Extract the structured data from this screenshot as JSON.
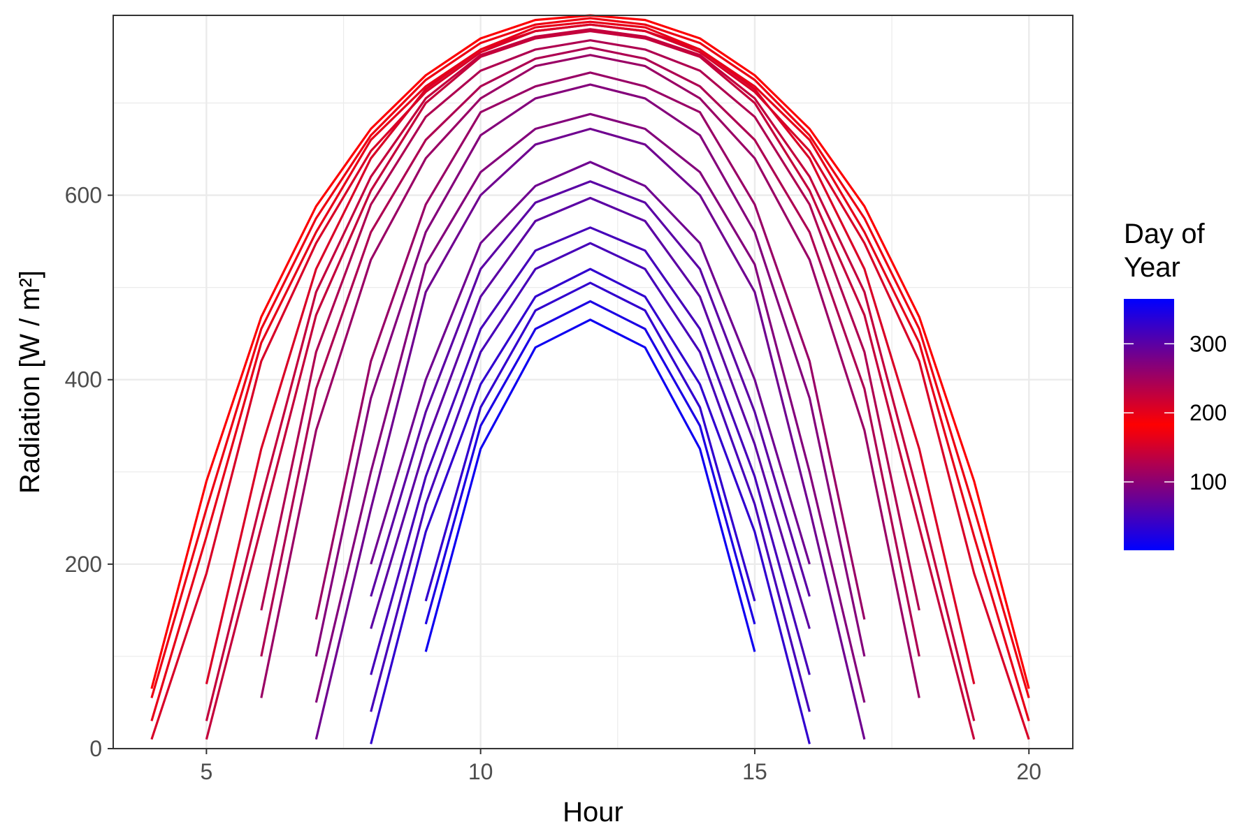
{
  "chart_data": {
    "type": "line",
    "title": "",
    "xlabel": "Hour",
    "ylabel": "Radiation [W / m²]",
    "xlim": [
      3.3,
      20.8
    ],
    "ylim": [
      0,
      795
    ],
    "x_ticks": [
      5,
      10,
      15,
      20
    ],
    "y_ticks": [
      0,
      200,
      400,
      600
    ],
    "x_minor_ticks": [
      7.5,
      12.5,
      17.5
    ],
    "y_minor_ticks": [
      100,
      300,
      500,
      700
    ],
    "grid": true,
    "legend": {
      "title_lines": [
        "Day of",
        "Year"
      ],
      "position": "right",
      "type": "colorbar",
      "range": [
        1,
        365
      ],
      "breaks": [
        100,
        200,
        300
      ],
      "colors": {
        "low": "#0000ff",
        "mid": "#ff0000",
        "high": "#0000ff"
      },
      "midpoint": 182
    },
    "colors": {
      "low": "#0000ff",
      "mid": "#ff0000",
      "high": "#0000ff"
    },
    "series": [
      {
        "day": 355,
        "x": [
          9,
          10,
          11,
          12,
          13,
          14,
          15
        ],
        "y": [
          105,
          325,
          435,
          465,
          435,
          325,
          105
        ]
      },
      {
        "day": 20,
        "x": [
          9,
          10,
          11,
          12,
          13,
          14,
          15
        ],
        "y": [
          135,
          350,
          455,
          485,
          455,
          350,
          135
        ]
      },
      {
        "day": 330,
        "x": [
          9,
          10,
          11,
          12,
          13,
          14,
          15
        ],
        "y": [
          160,
          370,
          475,
          505,
          475,
          370,
          160
        ]
      },
      {
        "day": 35,
        "x": [
          8,
          9,
          10,
          11,
          12,
          13,
          14,
          15,
          16
        ],
        "y": [
          5,
          235,
          395,
          490,
          520,
          490,
          395,
          235,
          5
        ]
      },
      {
        "day": 315,
        "x": [
          8,
          9,
          10,
          11,
          12,
          13,
          14,
          15,
          16
        ],
        "y": [
          40,
          265,
          430,
          520,
          548,
          520,
          430,
          265,
          40
        ]
      },
      {
        "day": 50,
        "x": [
          8,
          9,
          10,
          11,
          12,
          13,
          14,
          15,
          16
        ],
        "y": [
          80,
          295,
          455,
          540,
          565,
          540,
          455,
          295,
          80
        ]
      },
      {
        "day": 300,
        "x": [
          8,
          9,
          10,
          11,
          12,
          13,
          14,
          15,
          16
        ],
        "y": [
          130,
          330,
          490,
          572,
          597,
          572,
          490,
          330,
          130
        ]
      },
      {
        "day": 65,
        "x": [
          8,
          9,
          10,
          11,
          12,
          13,
          14,
          15,
          16
        ],
        "y": [
          165,
          365,
          520,
          592,
          615,
          592,
          520,
          365,
          165
        ]
      },
      {
        "day": 285,
        "x": [
          8,
          9,
          10,
          11,
          12,
          13,
          14,
          15,
          16
        ],
        "y": [
          200,
          400,
          548,
          610,
          636,
          610,
          548,
          400,
          200
        ]
      },
      {
        "day": 80,
        "x": [
          7,
          8,
          9,
          10,
          11,
          12,
          13,
          14,
          15,
          16,
          17
        ],
        "y": [
          10,
          260,
          495,
          600,
          655,
          672,
          655,
          600,
          495,
          260,
          10
        ]
      },
      {
        "day": 270,
        "x": [
          7,
          8,
          9,
          10,
          11,
          12,
          13,
          14,
          15,
          16,
          17
        ],
        "y": [
          50,
          300,
          525,
          625,
          672,
          688,
          672,
          625,
          525,
          300,
          50
        ]
      },
      {
        "day": 95,
        "x": [
          7,
          8,
          9,
          10,
          11,
          12,
          13,
          14,
          15,
          16,
          17
        ],
        "y": [
          100,
          380,
          560,
          665,
          705,
          720,
          705,
          665,
          560,
          380,
          100
        ]
      },
      {
        "day": 255,
        "x": [
          7,
          8,
          9,
          10,
          11,
          12,
          13,
          14,
          15,
          16,
          17
        ],
        "y": [
          140,
          420,
          590,
          690,
          718,
          733,
          718,
          690,
          590,
          420,
          140
        ]
      },
      {
        "day": 110,
        "x": [
          6,
          7,
          8,
          9,
          10,
          11,
          12,
          13,
          14,
          15,
          16,
          17,
          18
        ],
        "y": [
          55,
          345,
          530,
          640,
          705,
          740,
          752,
          740,
          705,
          640,
          530,
          345,
          55
        ]
      },
      {
        "day": 240,
        "x": [
          6,
          7,
          8,
          9,
          10,
          11,
          12,
          13,
          14,
          15,
          16,
          17,
          18
        ],
        "y": [
          100,
          390,
          560,
          660,
          718,
          748,
          760,
          748,
          718,
          660,
          560,
          390,
          100
        ]
      },
      {
        "day": 125,
        "x": [
          6,
          7,
          8,
          9,
          10,
          11,
          12,
          13,
          14,
          15,
          16,
          17,
          18
        ],
        "y": [
          150,
          430,
          590,
          685,
          735,
          758,
          768,
          758,
          735,
          685,
          590,
          430,
          150
        ]
      },
      {
        "day": 140,
        "x": [
          5,
          6,
          7,
          8,
          9,
          10,
          11,
          12,
          13,
          14,
          15,
          16,
          17,
          18,
          19
        ],
        "y": [
          10,
          240,
          470,
          605,
          700,
          750,
          770,
          778,
          770,
          750,
          700,
          605,
          470,
          240,
          10
        ]
      },
      {
        "day": 225,
        "x": [
          5,
          6,
          7,
          8,
          9,
          10,
          11,
          12,
          13,
          14,
          15,
          16,
          17,
          18,
          19
        ],
        "y": [
          30,
          270,
          495,
          620,
          705,
          752,
          772,
          780,
          772,
          752,
          705,
          620,
          495,
          270,
          30
        ]
      },
      {
        "day": 155,
        "x": [
          5,
          6,
          7,
          8,
          9,
          10,
          11,
          12,
          13,
          14,
          15,
          16,
          17,
          18,
          19
        ],
        "y": [
          70,
          325,
          520,
          640,
          715,
          758,
          778,
          785,
          778,
          758,
          715,
          640,
          520,
          325,
          70
        ]
      },
      {
        "day": 210,
        "x": [
          4,
          5,
          6,
          7,
          8,
          9,
          10,
          11,
          12,
          13,
          14,
          15,
          16,
          17,
          18,
          19,
          20
        ],
        "y": [
          10,
          190,
          420,
          548,
          648,
          712,
          755,
          778,
          785,
          778,
          755,
          712,
          648,
          548,
          420,
          190,
          10
        ]
      },
      {
        "day": 165,
        "x": [
          4,
          5,
          6,
          7,
          8,
          9,
          10,
          11,
          12,
          13,
          14,
          15,
          16,
          17,
          18,
          19,
          20
        ],
        "y": [
          30,
          230,
          440,
          560,
          660,
          718,
          758,
          782,
          788,
          782,
          758,
          718,
          660,
          560,
          440,
          230,
          30
        ]
      },
      {
        "day": 195,
        "x": [
          4,
          5,
          6,
          7,
          8,
          9,
          10,
          11,
          12,
          13,
          14,
          15,
          16,
          17,
          18,
          19,
          20
        ],
        "y": [
          55,
          260,
          455,
          575,
          665,
          725,
          765,
          785,
          792,
          785,
          765,
          725,
          665,
          575,
          455,
          260,
          55
        ]
      },
      {
        "day": 180,
        "x": [
          4,
          5,
          6,
          7,
          8,
          9,
          10,
          11,
          12,
          13,
          14,
          15,
          16,
          17,
          18,
          19,
          20
        ],
        "y": [
          65,
          290,
          468,
          588,
          672,
          730,
          770,
          790,
          795,
          790,
          770,
          730,
          672,
          588,
          468,
          290,
          65
        ]
      }
    ]
  }
}
